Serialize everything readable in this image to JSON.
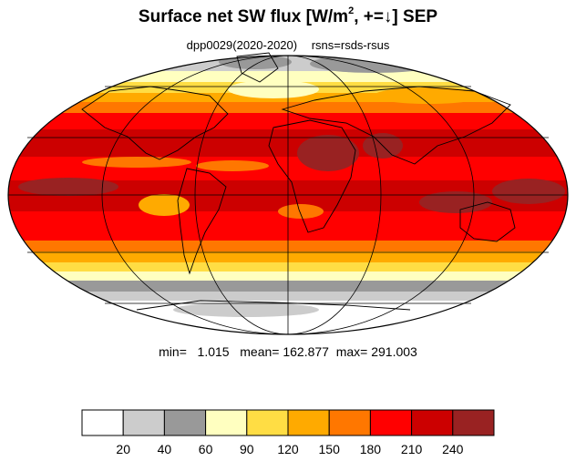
{
  "title": {
    "prefix": "Surface net SW flux [W/m",
    "superscript": "2",
    "suffix": ", +=↓]  SEP"
  },
  "subtitle": {
    "experiment": "dpp0029(2020-2020)",
    "variable": "rsns=rsds-rsus"
  },
  "stats": {
    "text": "min=   1.015   mean= 162.877  max= 291.003"
  },
  "colorbar": {
    "colors": [
      "#ffffff",
      "#cccccc",
      "#999999",
      "#ffffc0",
      "#ffdd44",
      "#ffaa00",
      "#ff7700",
      "#ff0000",
      "#cc0000",
      "#992222"
    ],
    "tick_labels": [
      "20",
      "40",
      "60",
      "90",
      "120",
      "150",
      "180",
      "210",
      "240"
    ]
  },
  "map": {
    "projection": "mollweide",
    "grid": true,
    "palette": {
      "white": "#ffffff",
      "light_gray": "#cccccc",
      "gray": "#999999",
      "pale_yellow": "#ffffc0",
      "yellow": "#ffdd44",
      "orange": "#ffaa00",
      "dark_orange": "#ff7700",
      "red": "#ff0000",
      "dark_red": "#cc0000",
      "maroon": "#992222"
    }
  }
}
